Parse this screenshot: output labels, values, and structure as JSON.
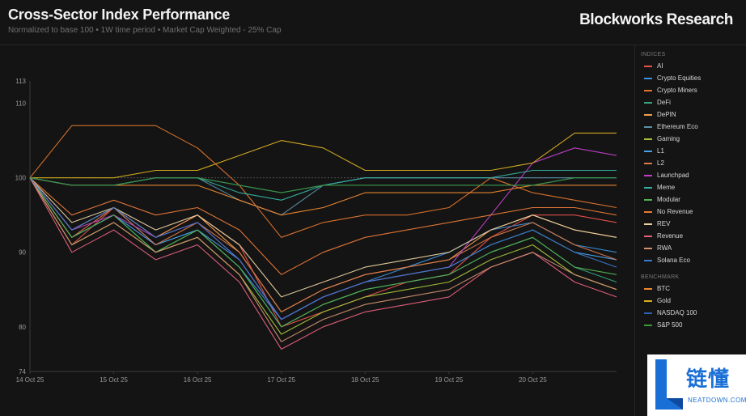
{
  "header": {
    "title": "Cross-Sector Index Performance",
    "subtitle": "Normalized to base 100 • 1W time period • Market Cap Weighted - 25% Cap",
    "brand": "Blockworks Research"
  },
  "legend": {
    "indices_header": "INDICES",
    "benchmark_header": "BENCHMARK"
  },
  "watermark": {
    "cn": "链懂",
    "en": "NEATDOWN.COM",
    "icon": "L-logo-icon"
  },
  "chart_data": {
    "type": "line",
    "x": [
      "14 Oct 25",
      "14.5",
      "15 Oct 25",
      "15.5",
      "16 Oct 25",
      "16.5",
      "17 Oct 25",
      "17.5",
      "18 Oct 25",
      "18.5",
      "19 Oct 25",
      "19.5",
      "20 Oct 25",
      "20.5",
      "20.8"
    ],
    "x_ticks": [
      "14 Oct 25",
      "15 Oct 25",
      "16 Oct 25",
      "17 Oct 25",
      "18 Oct 25",
      "19 Oct 25",
      "20 Oct 25"
    ],
    "y_ticks": [
      74,
      80,
      90,
      100,
      110,
      113
    ],
    "ylim": [
      74,
      113
    ],
    "baseline": 100,
    "grid": false,
    "legend_position": "right",
    "series": [
      {
        "name": "AI",
        "group": "indices",
        "color": "#e8524a",
        "values": [
          100,
          91,
          96,
          92,
          95,
          91,
          80,
          82,
          84,
          86,
          87,
          92,
          95,
          95,
          94
        ]
      },
      {
        "name": "Crypto Equities",
        "group": "indices",
        "color": "#3d8fd9",
        "values": [
          100,
          93,
          96,
          91,
          93,
          88,
          81,
          84,
          86,
          88,
          90,
          93,
          94,
          91,
          90
        ]
      },
      {
        "name": "Crypto Miners",
        "group": "indices",
        "color": "#e0742c",
        "values": [
          100,
          107,
          107,
          107,
          104,
          99,
          92,
          94,
          95,
          95,
          96,
          100,
          98,
          97,
          96
        ]
      },
      {
        "name": "DeFi",
        "group": "indices",
        "color": "#3aa37a",
        "values": [
          100,
          92,
          95,
          90,
          93,
          88,
          80,
          83,
          85,
          86,
          87,
          90,
          92,
          88,
          86
        ]
      },
      {
        "name": "DePIN",
        "group": "indices",
        "color": "#f0a050",
        "values": [
          100,
          93,
          96,
          92,
          95,
          90,
          82,
          85,
          87,
          88,
          89,
          93,
          95,
          93,
          92
        ]
      },
      {
        "name": "Ethereum Eco",
        "group": "indices",
        "color": "#5b8ea6",
        "values": [
          100,
          99,
          99,
          100,
          100,
          97,
          95,
          99,
          100,
          100,
          100,
          100,
          100,
          100,
          100
        ]
      },
      {
        "name": "Gaming",
        "group": "indices",
        "color": "#a6c23a",
        "values": [
          100,
          91,
          94,
          90,
          92,
          87,
          79,
          82,
          84,
          85,
          86,
          89,
          91,
          87,
          85
        ]
      },
      {
        "name": "L1",
        "group": "indices",
        "color": "#4aa0e8",
        "values": [
          100,
          92,
          95,
          91,
          93,
          89,
          81,
          84,
          86,
          87,
          88,
          91,
          93,
          90,
          89
        ]
      },
      {
        "name": "L2",
        "group": "indices",
        "color": "#d9784a",
        "values": [
          100,
          92,
          96,
          91,
          94,
          90,
          82,
          85,
          87,
          88,
          89,
          92,
          94,
          91,
          89
        ]
      },
      {
        "name": "Launchpad",
        "group": "indices",
        "color": "#c040c8",
        "values": [
          100,
          93,
          95,
          92,
          94,
          89,
          81,
          84,
          86,
          87,
          88,
          95,
          102,
          104,
          103
        ]
      },
      {
        "name": "Meme",
        "group": "indices",
        "color": "#35b0a0",
        "values": [
          100,
          99,
          99,
          100,
          100,
          98,
          97,
          99,
          100,
          100,
          100,
          100,
          101,
          101,
          101
        ]
      },
      {
        "name": "Modular",
        "group": "indices",
        "color": "#52b052",
        "values": [
          100,
          92,
          95,
          90,
          93,
          88,
          80,
          83,
          85,
          86,
          87,
          90,
          92,
          88,
          87
        ]
      },
      {
        "name": "No Revenue",
        "group": "indices",
        "color": "#e87838",
        "values": [
          100,
          95,
          97,
          95,
          96,
          93,
          87,
          90,
          92,
          93,
          94,
          95,
          96,
          96,
          95
        ]
      },
      {
        "name": "REV",
        "group": "indices",
        "color": "#e8d0a0",
        "values": [
          100,
          94,
          96,
          93,
          95,
          91,
          84,
          86,
          88,
          89,
          90,
          93,
          95,
          93,
          92
        ]
      },
      {
        "name": "Revenue",
        "group": "indices",
        "color": "#e86080",
        "values": [
          100,
          90,
          93,
          89,
          91,
          86,
          77,
          80,
          82,
          83,
          84,
          88,
          90,
          86,
          84
        ]
      },
      {
        "name": "RWA",
        "group": "indices",
        "color": "#d09070",
        "values": [
          100,
          91,
          94,
          90,
          92,
          87,
          78,
          81,
          83,
          84,
          85,
          88,
          90,
          87,
          85
        ]
      },
      {
        "name": "Solana Eco",
        "group": "indices",
        "color": "#3c78c8",
        "values": [
          100,
          93,
          96,
          92,
          94,
          89,
          81,
          84,
          86,
          87,
          88,
          91,
          93,
          90,
          88
        ]
      },
      {
        "name": "BTC",
        "group": "benchmark",
        "color": "#f08a30",
        "values": [
          100,
          99,
          99,
          99,
          99,
          97,
          95,
          96,
          98,
          98,
          98,
          98,
          99,
          99,
          99
        ]
      },
      {
        "name": "Gold",
        "group": "benchmark",
        "color": "#d8b020",
        "values": [
          100,
          100,
          100,
          101,
          101,
          103,
          105,
          104,
          101,
          101,
          101,
          101,
          102,
          106,
          106
        ]
      },
      {
        "name": "NASDAQ 100",
        "group": "benchmark",
        "color": "#2f5fb0",
        "values": [
          100,
          99,
          99,
          100,
          100,
          99,
          98,
          99,
          99,
          99,
          99,
          99,
          99,
          100,
          100
        ]
      },
      {
        "name": "S&P 500",
        "group": "benchmark",
        "color": "#3a9a3a",
        "values": [
          100,
          99,
          99,
          100,
          100,
          99,
          98,
          99,
          99,
          99,
          99,
          99,
          99,
          100,
          100
        ]
      }
    ]
  }
}
